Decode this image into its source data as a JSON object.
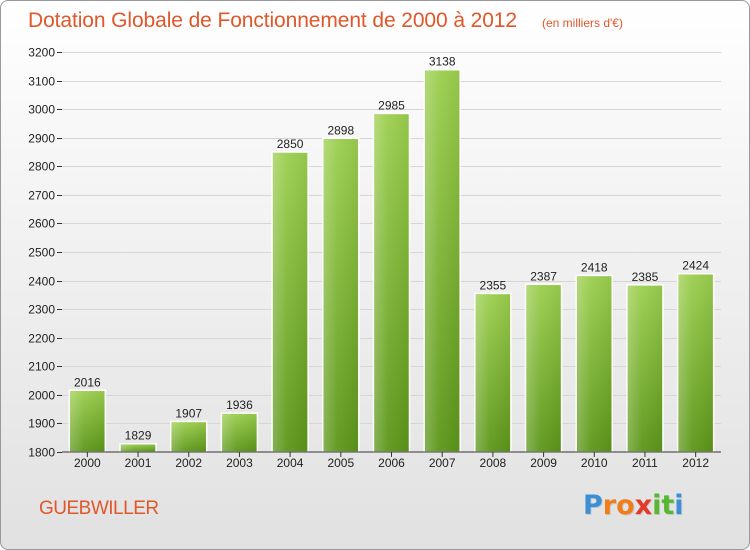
{
  "title": "Dotation Globale de Fonctionnement de 2000 à 2012",
  "subtitle": "(en milliers d'€)",
  "city": "GUEBWILLER",
  "logo": {
    "letters": [
      "P",
      "r",
      "o",
      "x",
      "i",
      "t",
      "i"
    ],
    "colors": [
      "#3a8fd6",
      "#f07d1a",
      "#f07d1a",
      "#e33b2a",
      "#55b82e",
      "#55b82e",
      "#3a8fd6"
    ]
  },
  "colors": {
    "title": "#e0572a",
    "bar_light": "#9ccf4f",
    "bar_dark": "#5c9619",
    "grid": "#d6d6d6"
  },
  "chart_data": {
    "type": "bar",
    "title": "Dotation Globale de Fonctionnement de 2000 à 2012",
    "subtitle": "(en milliers d'€)",
    "xlabel": "",
    "ylabel": "",
    "categories": [
      "2000",
      "2001",
      "2002",
      "2003",
      "2004",
      "2005",
      "2006",
      "2007",
      "2008",
      "2009",
      "2010",
      "2011",
      "2012"
    ],
    "values": [
      2016,
      1829,
      1907,
      1936,
      2850,
      2898,
      2985,
      3138,
      2355,
      2387,
      2418,
      2385,
      2424
    ],
    "ylim": [
      1800,
      3200
    ],
    "yticks": [
      1800,
      1900,
      2000,
      2100,
      2200,
      2300,
      2400,
      2500,
      2600,
      2700,
      2800,
      2900,
      3000,
      3100,
      3200
    ],
    "grid": true,
    "legend": "none"
  }
}
